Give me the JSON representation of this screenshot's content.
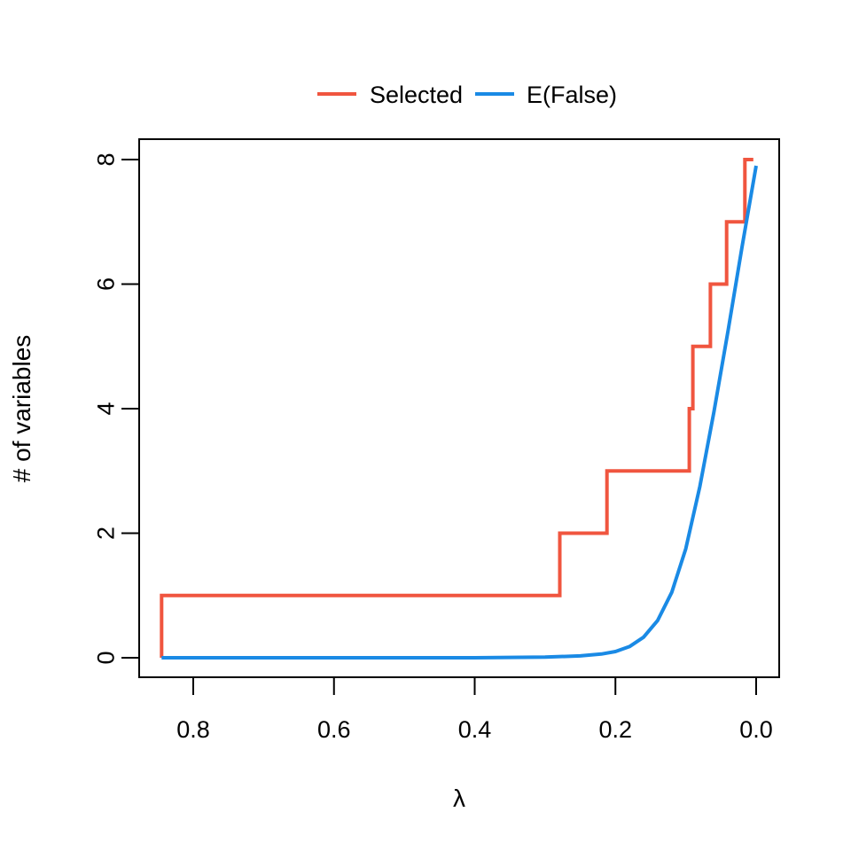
{
  "chart_data": {
    "type": "line",
    "title": "",
    "xlabel": "λ",
    "ylabel": "# of variables",
    "x_reversed": true,
    "xlim": [
      0.845,
      0.0
    ],
    "ylim": [
      0,
      8
    ],
    "xticks": [
      0.8,
      0.6,
      0.4,
      0.2,
      0.0
    ],
    "xtick_labels": [
      "0.8",
      "0.6",
      "0.4",
      "0.2",
      "0.0"
    ],
    "yticks": [
      0,
      2,
      4,
      6,
      8
    ],
    "ytick_labels": [
      "0",
      "2",
      "4",
      "6",
      "8"
    ],
    "grid": false,
    "legend_position": "top-center",
    "colors": {
      "selected": "#f0553f",
      "false": "#1a8ae5"
    },
    "series": [
      {
        "name": "Selected",
        "kind": "step",
        "x": [
          0.845,
          0.845,
          0.279,
          0.279,
          0.212,
          0.212,
          0.095,
          0.095,
          0.09,
          0.09,
          0.065,
          0.065,
          0.042,
          0.042,
          0.016,
          0.016,
          0.004
        ],
        "y": [
          0,
          1,
          1,
          2,
          2,
          3,
          3,
          4,
          4,
          5,
          5,
          6,
          6,
          7,
          7,
          8,
          8
        ]
      },
      {
        "name": "E(False)",
        "kind": "line",
        "x": [
          0.845,
          0.6,
          0.4,
          0.3,
          0.25,
          0.22,
          0.2,
          0.18,
          0.16,
          0.14,
          0.12,
          0.1,
          0.08,
          0.06,
          0.04,
          0.02,
          0.0
        ],
        "y": [
          0,
          0,
          0,
          0.01,
          0.03,
          0.06,
          0.1,
          0.18,
          0.33,
          0.6,
          1.05,
          1.75,
          2.75,
          3.95,
          5.25,
          6.6,
          7.9
        ]
      }
    ]
  }
}
